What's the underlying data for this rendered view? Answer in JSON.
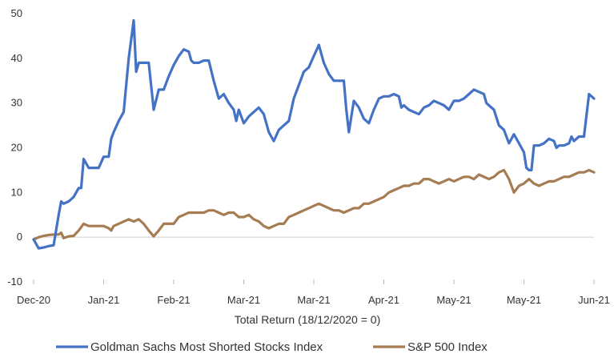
{
  "chart_data": {
    "type": "line",
    "title": "",
    "xlabel": "Total Return (18/12/2020 = 0)",
    "ylabel": "",
    "ylim": [
      -10,
      50
    ],
    "yticks": [
      -10,
      0,
      10,
      20,
      30,
      40,
      50
    ],
    "grid": false,
    "legend_position": "bottom",
    "x_tick_labels": [
      "Dec-20",
      "Jan-21",
      "Feb-21",
      "Mar-21",
      "Mar-21",
      "Apr-21",
      "May-21",
      "May-21",
      "Jun-21"
    ],
    "x_tick_positions": [
      0,
      14,
      28,
      42,
      56,
      70,
      84,
      98,
      112
    ],
    "x_range": [
      0,
      112
    ],
    "series": [
      {
        "name": "Goldman Sachs Most Shorted Stocks Index",
        "color": "#4472C4",
        "points": [
          [
            0,
            -0.5
          ],
          [
            1,
            -2.5
          ],
          [
            2,
            -2.3
          ],
          [
            3,
            -2.0
          ],
          [
            4,
            -1.8
          ],
          [
            5,
            5.0
          ],
          [
            5.5,
            8.0
          ],
          [
            6,
            7.5
          ],
          [
            7,
            8.0
          ],
          [
            8,
            9.0
          ],
          [
            9,
            11.0
          ],
          [
            9.5,
            11.0
          ],
          [
            10,
            17.5
          ],
          [
            11,
            15.5
          ],
          [
            12,
            15.5
          ],
          [
            13,
            15.5
          ],
          [
            14,
            18.0
          ],
          [
            15,
            18.0
          ],
          [
            15.5,
            22.0
          ],
          [
            16,
            23.5
          ],
          [
            17,
            26.0
          ],
          [
            18,
            28.0
          ],
          [
            19,
            40.0
          ],
          [
            20,
            48.5
          ],
          [
            20.5,
            37.0
          ],
          [
            21,
            39.0
          ],
          [
            22,
            39.0
          ],
          [
            23,
            39.0
          ],
          [
            24,
            28.5
          ],
          [
            25,
            33.0
          ],
          [
            26,
            33.0
          ],
          [
            27,
            36.0
          ],
          [
            28,
            38.5
          ],
          [
            29,
            40.5
          ],
          [
            30,
            42.0
          ],
          [
            31,
            41.5
          ],
          [
            31.5,
            39.5
          ],
          [
            32,
            39.0
          ],
          [
            33,
            39.0
          ],
          [
            34,
            39.5
          ],
          [
            35,
            39.5
          ],
          [
            36,
            35.0
          ],
          [
            37,
            31.0
          ],
          [
            38,
            32.0
          ],
          [
            39,
            30.0
          ],
          [
            40,
            28.5
          ],
          [
            40.5,
            26.0
          ],
          [
            41,
            28.5
          ],
          [
            42,
            25.5
          ],
          [
            43,
            27.0
          ],
          [
            44,
            28.0
          ],
          [
            45,
            29.0
          ],
          [
            46,
            27.5
          ],
          [
            47,
            23.5
          ],
          [
            48,
            21.5
          ],
          [
            49,
            24.0
          ],
          [
            50,
            25.0
          ],
          [
            51,
            26.0
          ],
          [
            52,
            31.0
          ],
          [
            53,
            34.0
          ],
          [
            54,
            37.0
          ],
          [
            55,
            38.0
          ],
          [
            56,
            40.5
          ],
          [
            57,
            43.0
          ],
          [
            58,
            39.0
          ],
          [
            59,
            36.5
          ],
          [
            60,
            35.0
          ],
          [
            61,
            35.0
          ],
          [
            62,
            35.0
          ],
          [
            62.5,
            28.5
          ],
          [
            63,
            23.5
          ],
          [
            64,
            30.5
          ],
          [
            65,
            29.0
          ],
          [
            66,
            26.5
          ],
          [
            67,
            25.5
          ],
          [
            68,
            28.5
          ],
          [
            69,
            31.0
          ],
          [
            70,
            31.5
          ],
          [
            71,
            31.5
          ],
          [
            72,
            32.0
          ],
          [
            73,
            31.5
          ],
          [
            73.5,
            29.0
          ],
          [
            74,
            29.5
          ],
          [
            75,
            28.5
          ],
          [
            76,
            28.0
          ],
          [
            77,
            27.5
          ],
          [
            78,
            29.0
          ],
          [
            79,
            29.5
          ],
          [
            80,
            30.5
          ],
          [
            81,
            30.0
          ],
          [
            82,
            29.5
          ],
          [
            83,
            28.5
          ],
          [
            84,
            30.5
          ],
          [
            85,
            30.5
          ],
          [
            86,
            31.0
          ],
          [
            87,
            32.0
          ],
          [
            88,
            33.0
          ],
          [
            89,
            32.5
          ],
          [
            90,
            32.0
          ],
          [
            90.5,
            30.0
          ],
          [
            91,
            29.5
          ],
          [
            92,
            28.5
          ],
          [
            93,
            25.0
          ],
          [
            94,
            24.0
          ],
          [
            95,
            21.0
          ],
          [
            96,
            23.0
          ],
          [
            97,
            21.0
          ],
          [
            98,
            19.0
          ],
          [
            98.5,
            15.5
          ],
          [
            99,
            15.0
          ],
          [
            99.5,
            15.0
          ],
          [
            100,
            20.5
          ],
          [
            101,
            20.5
          ],
          [
            102,
            21.0
          ],
          [
            103,
            22.0
          ],
          [
            104,
            21.5
          ],
          [
            104.5,
            20.0
          ],
          [
            105,
            20.5
          ],
          [
            106,
            20.5
          ],
          [
            107,
            21.0
          ],
          [
            107.5,
            22.5
          ],
          [
            108,
            21.5
          ],
          [
            109,
            22.5
          ],
          [
            110,
            22.5
          ],
          [
            111,
            32.0
          ],
          [
            112,
            31.0
          ]
        ]
      },
      {
        "name": "S&P 500 Index",
        "color": "#A67C52",
        "points": [
          [
            0,
            -0.5
          ],
          [
            1,
            0.0
          ],
          [
            2,
            0.3
          ],
          [
            3,
            0.5
          ],
          [
            4,
            0.6
          ],
          [
            5,
            0.6
          ],
          [
            5.5,
            1.0
          ],
          [
            6,
            -0.2
          ],
          [
            7,
            0.2
          ],
          [
            8,
            0.3
          ],
          [
            9,
            1.5
          ],
          [
            10,
            3.0
          ],
          [
            11,
            2.5
          ],
          [
            12,
            2.5
          ],
          [
            13,
            2.5
          ],
          [
            14,
            2.5
          ],
          [
            15,
            2.0
          ],
          [
            15.5,
            1.5
          ],
          [
            16,
            2.5
          ],
          [
            17,
            3.0
          ],
          [
            18,
            3.5
          ],
          [
            19,
            4.0
          ],
          [
            20,
            3.5
          ],
          [
            21,
            4.0
          ],
          [
            22,
            3.0
          ],
          [
            23,
            1.5
          ],
          [
            24,
            0.2
          ],
          [
            25,
            1.5
          ],
          [
            26,
            3.0
          ],
          [
            27,
            3.0
          ],
          [
            28,
            3.0
          ],
          [
            29,
            4.5
          ],
          [
            30,
            5.0
          ],
          [
            31,
            5.5
          ],
          [
            32,
            5.5
          ],
          [
            33,
            5.5
          ],
          [
            34,
            5.5
          ],
          [
            35,
            6.0
          ],
          [
            36,
            6.0
          ],
          [
            37,
            5.5
          ],
          [
            38,
            5.0
          ],
          [
            39,
            5.5
          ],
          [
            40,
            5.5
          ],
          [
            40.5,
            5.0
          ],
          [
            41,
            4.5
          ],
          [
            42,
            4.5
          ],
          [
            43,
            5.0
          ],
          [
            44,
            4.0
          ],
          [
            45,
            3.5
          ],
          [
            46,
            2.5
          ],
          [
            47,
            2.0
          ],
          [
            48,
            2.5
          ],
          [
            49,
            3.0
          ],
          [
            50,
            3.0
          ],
          [
            51,
            4.5
          ],
          [
            52,
            5.0
          ],
          [
            53,
            5.5
          ],
          [
            54,
            6.0
          ],
          [
            55,
            6.5
          ],
          [
            56,
            7.0
          ],
          [
            57,
            7.5
          ],
          [
            58,
            7.0
          ],
          [
            59,
            6.5
          ],
          [
            60,
            6.0
          ],
          [
            61,
            6.0
          ],
          [
            62,
            5.5
          ],
          [
            63,
            6.0
          ],
          [
            64,
            6.5
          ],
          [
            65,
            6.5
          ],
          [
            66,
            7.5
          ],
          [
            67,
            7.5
          ],
          [
            68,
            8.0
          ],
          [
            69,
            8.5
          ],
          [
            70,
            9.0
          ],
          [
            71,
            10.0
          ],
          [
            72,
            10.5
          ],
          [
            73,
            11.0
          ],
          [
            74,
            11.5
          ],
          [
            75,
            11.5
          ],
          [
            76,
            12.0
          ],
          [
            77,
            12.0
          ],
          [
            78,
            13.0
          ],
          [
            79,
            13.0
          ],
          [
            80,
            12.5
          ],
          [
            81,
            12.0
          ],
          [
            82,
            12.5
          ],
          [
            83,
            13.0
          ],
          [
            84,
            12.5
          ],
          [
            85,
            13.0
          ],
          [
            86,
            13.5
          ],
          [
            87,
            13.5
          ],
          [
            88,
            13.0
          ],
          [
            89,
            14.0
          ],
          [
            90,
            13.5
          ],
          [
            91,
            13.0
          ],
          [
            92,
            13.5
          ],
          [
            93,
            14.5
          ],
          [
            94,
            15.0
          ],
          [
            95,
            13.0
          ],
          [
            96,
            10.0
          ],
          [
            97,
            11.5
          ],
          [
            98,
            12.0
          ],
          [
            99,
            13.0
          ],
          [
            100,
            12.0
          ],
          [
            101,
            11.5
          ],
          [
            102,
            12.0
          ],
          [
            103,
            12.5
          ],
          [
            104,
            12.5
          ],
          [
            105,
            13.0
          ],
          [
            106,
            13.5
          ],
          [
            107,
            13.5
          ],
          [
            108,
            14.0
          ],
          [
            109,
            14.5
          ],
          [
            110,
            14.5
          ],
          [
            111,
            15.0
          ],
          [
            112,
            14.5
          ]
        ]
      }
    ]
  }
}
